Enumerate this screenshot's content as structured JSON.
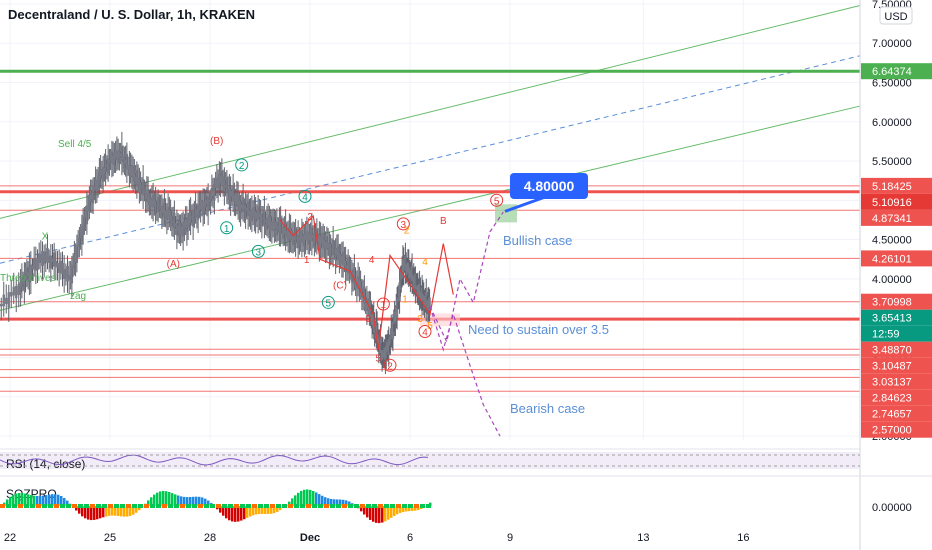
{
  "header": {
    "title": "Decentraland / U. S. Dollar, 1h, KRAKEN"
  },
  "price_axis": {
    "currency": "USD",
    "ticks": [
      "7.50000",
      "7.00000",
      "6.50000",
      "6.00000",
      "5.50000",
      "5.00000",
      "4.50000",
      "4.00000",
      "3.50000",
      "3.00000",
      "2.50000",
      "2.00000"
    ],
    "tick_values": [
      7.5,
      7.0,
      6.5,
      6.0,
      5.5,
      5.0,
      4.5,
      4.0,
      3.5,
      3.0,
      2.5,
      2.0
    ],
    "range": [
      1.95,
      7.55
    ]
  },
  "time_axis": {
    "ticks": [
      "22",
      "25",
      "28",
      "Dec",
      "6",
      "9",
      "13",
      "16"
    ],
    "positions": [
      0.0,
      3.0,
      6.0,
      9.0,
      12.0,
      15.0,
      19.0,
      22.0
    ],
    "range": [
      -0.3,
      25.5
    ]
  },
  "price_labels": [
    {
      "text": "6.64374",
      "value": 6.64374,
      "color": "#4caf50"
    },
    {
      "text": "5.18425",
      "value": 5.18425,
      "color": "#ef5350"
    },
    {
      "text": "5.10916",
      "value": 5.10916,
      "color": "#e53935"
    },
    {
      "text": "4.87341",
      "value": 4.87341,
      "color": "#ef5350"
    },
    {
      "text": "4.26101",
      "value": 4.26101,
      "color": "#ef5350"
    },
    {
      "text": "3.70998",
      "value": 3.70998,
      "color": "#ef5350"
    },
    {
      "text": "3.65413",
      "value": 3.65413,
      "color": "#089981"
    },
    {
      "text": "12:59",
      "value": 3.52,
      "color": "#089981"
    },
    {
      "text": "3.48870",
      "value": 3.4887,
      "color": "#ef5350"
    },
    {
      "text": "3.10487",
      "value": 3.10487,
      "color": "#ef5350"
    },
    {
      "text": "3.03137",
      "value": 3.03137,
      "color": "#ef5350"
    },
    {
      "text": "2.84623",
      "value": 2.84623,
      "color": "#ef5350"
    },
    {
      "text": "2.74657",
      "value": 2.74657,
      "color": "#ef5350"
    },
    {
      "text": "2.57000",
      "value": 2.57,
      "color": "#ef5350"
    }
  ],
  "target_badge": {
    "text": "4.80000",
    "value": 4.8,
    "color": "#2962ff"
  },
  "annotations": {
    "bullish": "Bullish case",
    "bearish": "Bearish case",
    "sustain": "Need to sustain over 3.5",
    "sell": "Sell 4/5",
    "three_drives": "Three drives",
    "zigzag": "zag"
  },
  "wave_labels": [
    {
      "text": "(B)",
      "t": 6.2,
      "v": 5.72,
      "color": "#e53935"
    },
    {
      "text": "(A)",
      "t": 4.9,
      "v": 4.15,
      "color": "#e53935"
    },
    {
      "text": "(C)",
      "t": 9.9,
      "v": 3.88,
      "color": "#e53935"
    },
    {
      "text": "X",
      "t": 1.05,
      "v": 4.5,
      "color": "#4caf50"
    },
    {
      "text": "2",
      "t": 6.95,
      "v": 5.4,
      "color": "#089981",
      "circle": true
    },
    {
      "text": "1",
      "t": 6.5,
      "v": 4.6,
      "color": "#089981",
      "circle": true
    },
    {
      "text": "3",
      "t": 7.45,
      "v": 4.3,
      "color": "#089981",
      "circle": true
    },
    {
      "text": "4",
      "t": 8.85,
      "v": 5.0,
      "color": "#089981",
      "circle": true
    },
    {
      "text": "5",
      "t": 9.55,
      "v": 3.65,
      "color": "#089981",
      "circle": true
    },
    {
      "text": "2",
      "t": 9.0,
      "v": 4.75,
      "color": "#e53935"
    },
    {
      "text": "1",
      "t": 8.9,
      "v": 4.2,
      "color": "#e53935"
    },
    {
      "text": "4",
      "t": 10.85,
      "v": 4.2,
      "color": "#e53935"
    },
    {
      "text": "3",
      "t": 10.75,
      "v": 3.45,
      "color": "#e53935"
    },
    {
      "text": "1",
      "t": 11.2,
      "v": 3.63,
      "color": "#e53935",
      "circle": true
    },
    {
      "text": "5",
      "t": 11.05,
      "v": 2.95,
      "color": "#e53935"
    },
    {
      "text": "2",
      "t": 11.4,
      "v": 2.85,
      "color": "#e53935",
      "circle": true
    },
    {
      "text": "3",
      "t": 11.8,
      "v": 4.65,
      "color": "#e53935",
      "circle": true
    },
    {
      "text": "2",
      "t": 11.9,
      "v": 4.58,
      "color": "#ff9800"
    },
    {
      "text": "4",
      "t": 12.45,
      "v": 4.18,
      "color": "#ff9800"
    },
    {
      "text": "1",
      "t": 11.85,
      "v": 3.7,
      "color": "#ff9800"
    },
    {
      "text": "3",
      "t": 12.3,
      "v": 3.45,
      "color": "#ff9800"
    },
    {
      "text": "5",
      "t": 12.6,
      "v": 3.36,
      "color": "#ff9800"
    },
    {
      "text": "4",
      "t": 12.45,
      "v": 3.28,
      "color": "#e53935",
      "circle": true
    },
    {
      "text": "B",
      "t": 13.0,
      "v": 4.7,
      "color": "#e53935"
    },
    {
      "text": "5",
      "t": 14.6,
      "v": 4.95,
      "color": "#e53935",
      "circle": true
    }
  ],
  "indicators": {
    "rsi_label": "RSI (14, close)",
    "sqz_label": "SQZPRO",
    "sqz_axis": "0.00000"
  },
  "chart_data": {
    "type": "line",
    "title": "Decentraland / U. S. Dollar, 1h, KRAKEN",
    "xlabel": "",
    "ylabel": "",
    "x_ticks": [
      "22",
      "25",
      "28",
      "Dec",
      "6",
      "9",
      "13",
      "16"
    ],
    "ylim": [
      1.95,
      7.55
    ],
    "horizontal_levels": [
      6.64374,
      5.18425,
      5.10916,
      4.87341,
      4.26101,
      3.70998,
      3.4887,
      3.10487,
      3.03137,
      2.84623,
      2.74657,
      2.57
    ],
    "current_price": 3.65413,
    "target": 4.8,
    "series": [
      {
        "name": "",
        "x": [
          -0.3,
          0.3,
          0.6,
          1.0,
          1.4,
          1.8,
          2.1,
          2.4,
          2.7,
          3.0,
          3.3,
          3.6,
          3.9,
          4.2,
          4.5,
          4.8,
          5.1,
          5.4,
          5.7,
          6.0,
          6.3,
          6.6,
          6.9,
          7.2,
          7.5,
          7.8,
          8.1,
          8.4,
          8.7,
          9.0,
          9.3,
          9.6,
          9.9,
          10.2,
          10.5,
          10.8,
          11.0,
          11.2,
          11.4,
          11.6,
          11.8,
          12.0,
          12.2,
          12.4,
          12.6
        ],
        "values": [
          3.65,
          3.9,
          4.1,
          4.3,
          4.2,
          4.0,
          4.5,
          5.0,
          5.3,
          5.5,
          5.6,
          5.4,
          5.2,
          5.0,
          4.9,
          4.8,
          4.6,
          4.75,
          4.9,
          5.0,
          5.3,
          5.1,
          4.95,
          4.85,
          4.8,
          4.7,
          4.65,
          4.55,
          4.5,
          4.55,
          4.5,
          4.4,
          4.3,
          4.1,
          3.9,
          3.6,
          3.3,
          3.0,
          3.2,
          3.6,
          4.2,
          4.1,
          3.9,
          3.75,
          3.65
        ]
      }
    ],
    "scenarios": [
      {
        "name": "Bullish case",
        "x": [
          12.6,
          13.1,
          13.5,
          13.9,
          14.4,
          14.8
        ],
        "values": [
          3.65,
          3.2,
          4.0,
          3.7,
          4.6,
          4.85
        ]
      },
      {
        "name": "Bearish case",
        "x": [
          12.6,
          13.0,
          13.3,
          13.8,
          14.2,
          14.7
        ],
        "values": [
          3.65,
          3.1,
          3.55,
          2.9,
          2.4,
          2.0
        ]
      }
    ]
  }
}
